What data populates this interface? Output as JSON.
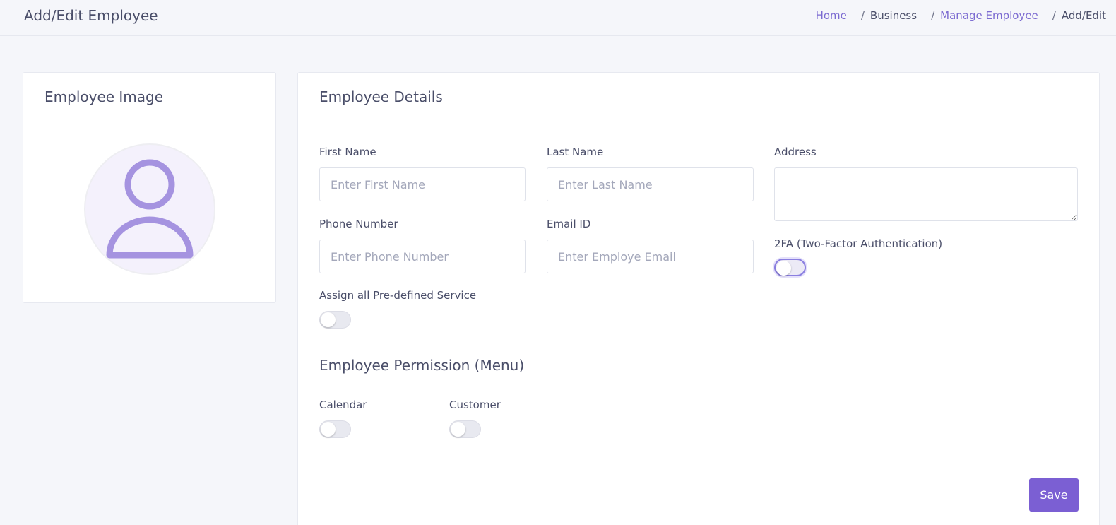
{
  "header": {
    "title": "Add/Edit Employee",
    "breadcrumb": [
      "Home",
      "Business",
      "Manage Employee",
      "Add/Edit"
    ],
    "breadcrumb_separator": "/"
  },
  "image_card": {
    "title": "Employee Image",
    "avatar_icon": "user-icon"
  },
  "details": {
    "title": "Employee Details",
    "first_name": {
      "label": "First Name",
      "placeholder": "Enter First Name",
      "value": ""
    },
    "last_name": {
      "label": "Last Name",
      "placeholder": "Enter Last Name",
      "value": ""
    },
    "address": {
      "label": "Address",
      "value": ""
    },
    "phone": {
      "label": "Phone Number",
      "placeholder": "Enter Phone Number",
      "value": ""
    },
    "email": {
      "label": "Email ID",
      "placeholder": "Enter Employe Email",
      "value": ""
    },
    "twofa": {
      "label": "2FA (Two-Factor Authentication)",
      "on": false
    },
    "assign_services": {
      "label": "Assign all Pre-defined Service",
      "on": false
    }
  },
  "permissions": {
    "title": "Employee Permission (Menu)",
    "items": [
      {
        "label": "Calendar",
        "on": false
      },
      {
        "label": "Customer",
        "on": false
      }
    ]
  },
  "actions": {
    "save_label": "Save"
  },
  "colors": {
    "accent": "#7b5fd3",
    "link": "#7c6bd1",
    "avatar_stroke": "#a593e0"
  }
}
